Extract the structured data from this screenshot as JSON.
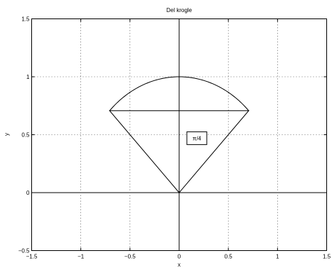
{
  "chart_data": {
    "type": "line",
    "title": "Del krogle",
    "xlabel": "x",
    "ylabel": "y",
    "xlim": [
      -1.5,
      1.5
    ],
    "ylim": [
      -0.5,
      1.5
    ],
    "x_ticks": [
      -1.5,
      -1,
      -0.5,
      0,
      0.5,
      1,
      1.5
    ],
    "y_ticks": [
      -0.5,
      0,
      0.5,
      1,
      1.5
    ],
    "x_tick_labels": [
      "−1.5",
      "−1",
      "−0.5",
      "0",
      "0.5",
      "1",
      "1.5"
    ],
    "y_tick_labels": [
      "−0.5",
      "0",
      "0.5",
      "1",
      "1.5"
    ],
    "grid": true,
    "axes_lines": {
      "x_axis_at_y": 0,
      "y_axis_at_x": 0
    },
    "series": [
      {
        "kind": "polyline",
        "x": [
          0,
          0.7071,
          -0.7071,
          0
        ],
        "y": [
          0,
          0.7071,
          0.7071,
          0
        ]
      },
      {
        "kind": "arc",
        "center": [
          0,
          0
        ],
        "radius": 1,
        "theta_start_deg": 45,
        "theta_end_deg": 135
      }
    ],
    "annotations": [
      {
        "text": "π/4",
        "x": 0.18,
        "y": 0.47,
        "boxed": true
      }
    ],
    "color": "#000000"
  }
}
